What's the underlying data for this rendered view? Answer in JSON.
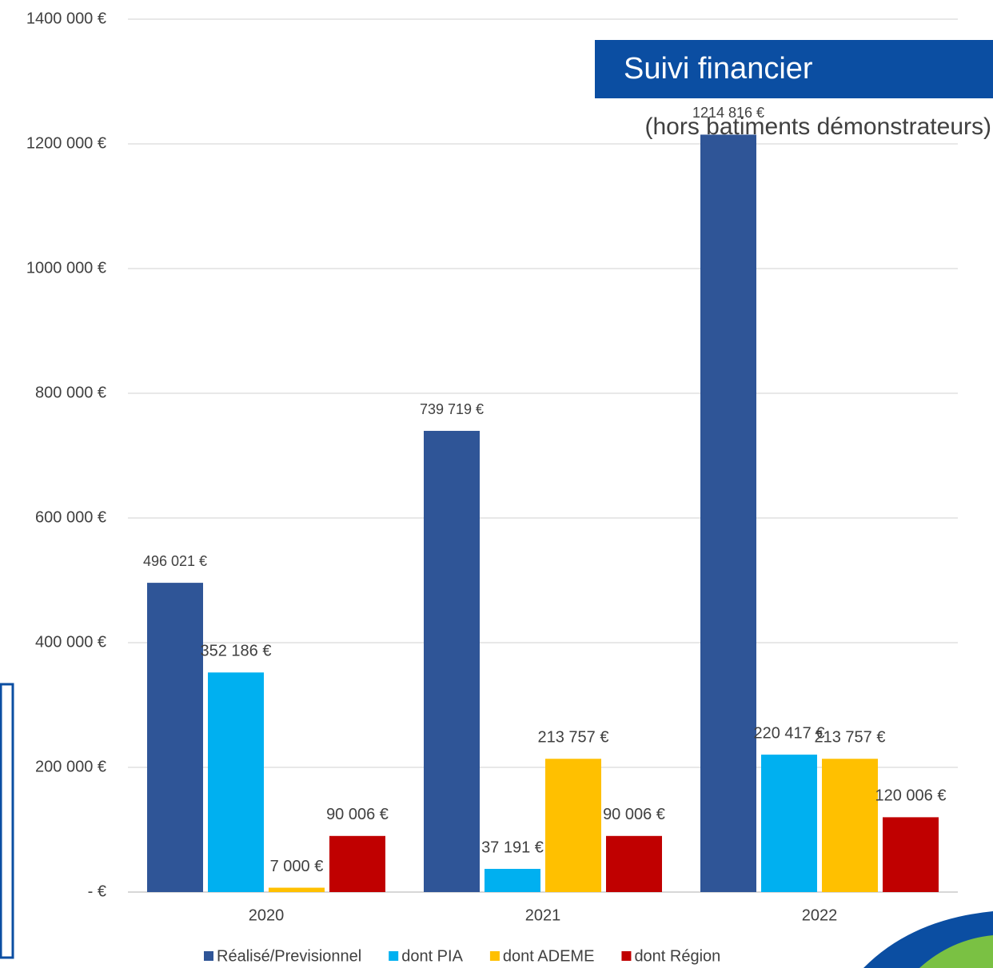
{
  "chart_data": {
    "type": "bar",
    "title": "Suivi financier",
    "subtitle": "(hors batiments démonstrateurs)",
    "categories": [
      "2020",
      "2021",
      "2022"
    ],
    "series": [
      {
        "name": "Réalisé/Previsionnel",
        "color": "#2f5597",
        "values": [
          496021,
          739719,
          1214816
        ],
        "value_labels": [
          "496 021 €",
          "739 719 €",
          "1214 816 €"
        ]
      },
      {
        "name": "dont PIA",
        "color": "#00b0f0",
        "values": [
          352186,
          37191,
          220417
        ],
        "value_labels": [
          "352 186 €",
          "37 191 €",
          "220 417 €"
        ]
      },
      {
        "name": "dont ADEME",
        "color": "#ffc000",
        "values": [
          7000,
          213757,
          213757
        ],
        "value_labels": [
          "7 000 €",
          "213 757 €",
          "213 757 €"
        ]
      },
      {
        "name": "dont Région",
        "color": "#c00000",
        "values": [
          90006,
          90006,
          120006
        ],
        "value_labels": [
          "90 006 €",
          "90 006 €",
          "120 006 €"
        ]
      }
    ],
    "ylim": [
      0,
      1400000
    ],
    "yticks": [
      {
        "value": 0,
        "label": "-  €"
      },
      {
        "value": 200000,
        "label": "200 000 €"
      },
      {
        "value": 400000,
        "label": "400 000 €"
      },
      {
        "value": 600000,
        "label": "600 000 €"
      },
      {
        "value": 800000,
        "label": "800 000 €"
      },
      {
        "value": 1000000,
        "label": "1000 000 €"
      },
      {
        "value": 1200000,
        "label": "1200 000 €"
      },
      {
        "value": 1400000,
        "label": "1400 000 €"
      }
    ],
    "grid": true,
    "legend": "bottom"
  }
}
